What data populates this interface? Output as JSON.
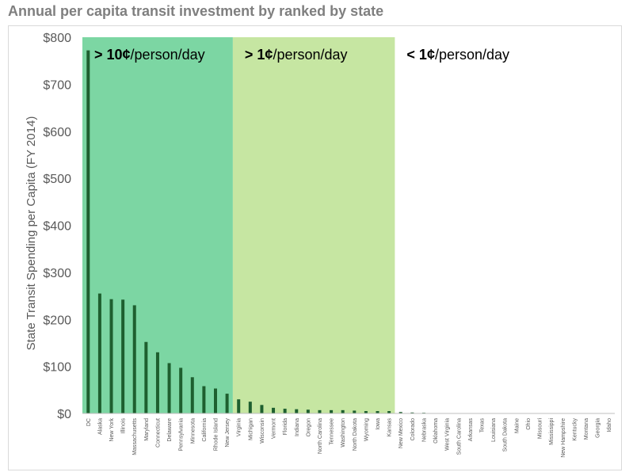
{
  "chart_data": {
    "type": "bar",
    "title": "Annual per capita transit investment by ranked by state",
    "ylabel": "State Transit Spending per Capita (FY 2014)",
    "xlabel": "",
    "ylim": [
      0,
      800
    ],
    "yticks": [
      0,
      100,
      200,
      300,
      400,
      500,
      600,
      700,
      800
    ],
    "ytick_labels": [
      "$0",
      "$100",
      "$200",
      "$300",
      "$400",
      "$500",
      "$600",
      "$700",
      "$800"
    ],
    "bar_color": "#1e5f2f",
    "categories": [
      "DC",
      "Alaska",
      "New York",
      "Illinois",
      "Massachusetts",
      "Maryland",
      "Connecticut",
      "Delaware",
      "Pennsylvania",
      "Minnesota",
      "California",
      "Rhode Island",
      "New Jersey",
      "Virginia",
      "Michigan",
      "Wisconsin",
      "Vermont",
      "Florida",
      "Indiana",
      "Oregon",
      "North Carolina",
      "Tennessee",
      "Washington",
      "North Dakota",
      "Wyoming",
      "Iowa",
      "Kansas",
      "New Mexico",
      "Colorado",
      "Nebraska",
      "Oklahoma",
      "West Virginia",
      "South Carolina",
      "Arkansas",
      "Texas",
      "Louisiana",
      "South Dakota",
      "Maine",
      "Ohio",
      "Missouri",
      "Mississippi",
      "New Hampshire",
      "Kentucky",
      "Montana",
      "Georgia",
      "Idaho"
    ],
    "values": [
      772,
      255,
      243,
      242,
      230,
      152,
      130,
      107,
      97,
      77,
      58,
      53,
      42,
      30,
      25,
      18,
      12,
      10,
      9,
      8,
      7,
      7,
      7,
      6,
      5,
      5,
      5,
      3,
      2,
      1.5,
      0.5,
      0.5,
      0.3,
      0.3,
      0.2,
      0.2,
      0.2,
      0.1,
      0.1,
      0.1,
      0.1,
      0.1,
      0.1,
      0.1,
      0.1,
      0.1
    ],
    "bands": [
      {
        "label_bold": "> 10¢",
        "label_rest": "/person/day",
        "from": 0,
        "to": 13,
        "color": "#7cd6a3"
      },
      {
        "label_bold": "> 1¢",
        "label_rest": "/person/day",
        "from": 13,
        "to": 27,
        "color": "#c6e6a2"
      },
      {
        "label_bold": "< 1¢",
        "label_rest": "/person/day",
        "from": 27,
        "to": 46,
        "color": "#ffffff"
      }
    ]
  }
}
